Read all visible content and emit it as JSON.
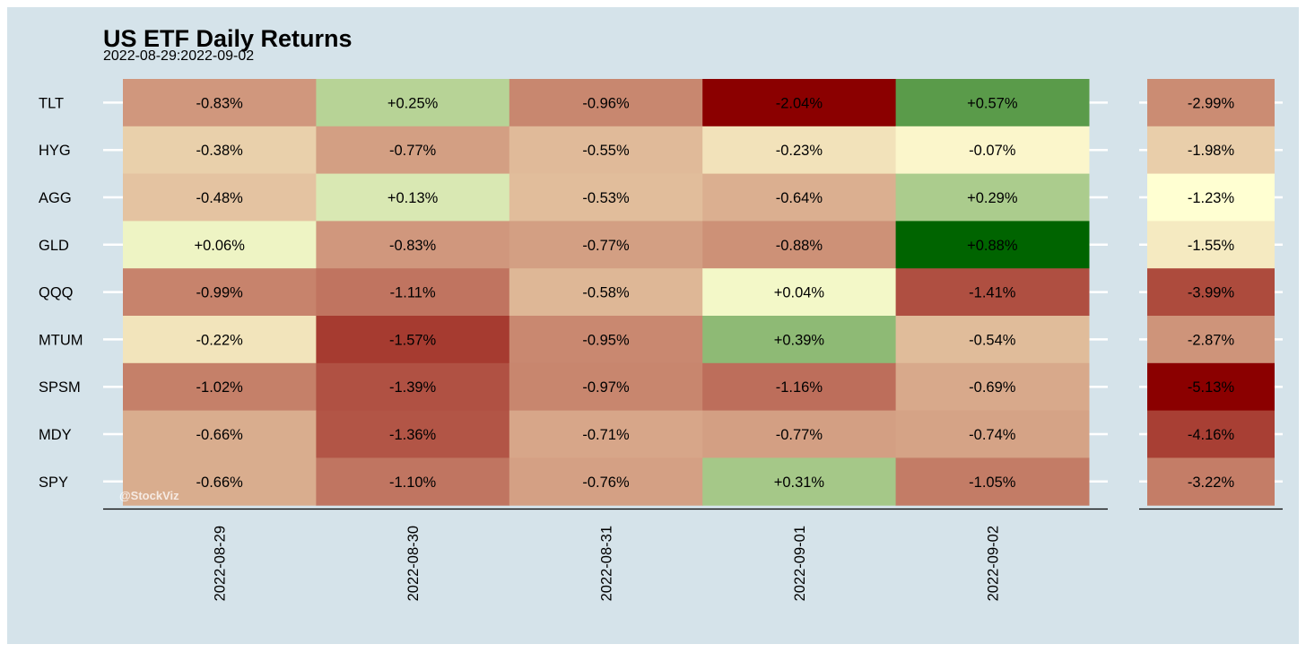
{
  "chart_data": {
    "type": "heatmap",
    "title": "US ETF Daily Returns",
    "subtitle": "2022-08-29:2022-09-02",
    "watermark": "@StockViz",
    "dates": [
      "2022-08-29",
      "2022-08-30",
      "2022-08-31",
      "2022-09-01",
      "2022-09-02"
    ],
    "tickers": [
      "TLT",
      "HYG",
      "AGG",
      "GLD",
      "QQQ",
      "MTUM",
      "SPSM",
      "MDY",
      "SPY"
    ],
    "values": [
      [
        -0.83,
        0.25,
        -0.96,
        -2.04,
        0.57
      ],
      [
        -0.38,
        -0.77,
        -0.55,
        -0.23,
        -0.07
      ],
      [
        -0.48,
        0.13,
        -0.53,
        -0.64,
        0.29
      ],
      [
        0.06,
        -0.83,
        -0.77,
        -0.88,
        0.88
      ],
      [
        -0.99,
        -1.11,
        -0.58,
        0.04,
        -1.41
      ],
      [
        -0.22,
        -1.57,
        -0.95,
        0.39,
        -0.54
      ],
      [
        -1.02,
        -1.39,
        -0.97,
        -1.16,
        -0.69
      ],
      [
        -0.66,
        -1.36,
        -0.71,
        -0.77,
        -0.74
      ],
      [
        -0.66,
        -1.1,
        -0.76,
        0.31,
        -1.05
      ]
    ],
    "labels": [
      [
        "-0.83%",
        "+0.25%",
        "-0.96%",
        "-2.04%",
        "+0.57%"
      ],
      [
        "-0.38%",
        "-0.77%",
        "-0.55%",
        "-0.23%",
        "-0.07%"
      ],
      [
        "-0.48%",
        "+0.13%",
        "-0.53%",
        "-0.64%",
        "+0.29%"
      ],
      [
        "+0.06%",
        "-0.83%",
        "-0.77%",
        "-0.88%",
        "+0.88%"
      ],
      [
        "-0.99%",
        "-1.11%",
        "-0.58%",
        "+0.04%",
        "-1.41%"
      ],
      [
        "-0.22%",
        "-1.57%",
        "-0.95%",
        "+0.39%",
        "-0.54%"
      ],
      [
        "-1.02%",
        "-1.39%",
        "-0.97%",
        "-1.16%",
        "-0.69%"
      ],
      [
        "-0.66%",
        "-1.36%",
        "-0.71%",
        "-0.77%",
        "-0.74%"
      ],
      [
        "-0.66%",
        "-1.10%",
        "-0.76%",
        "+0.31%",
        "-1.05%"
      ]
    ],
    "totals": [
      -2.99,
      -1.98,
      -1.23,
      -1.55,
      -3.99,
      -2.87,
      -5.13,
      -4.16,
      -3.22
    ],
    "total_labels": [
      "-2.99%",
      "-1.98%",
      "-1.23%",
      "-1.55%",
      "-3.99%",
      "-2.87%",
      "-5.13%",
      "-4.16%",
      "-3.22%"
    ],
    "colors": {
      "background": "#d5e3ea",
      "low": "#8b0000",
      "mid": "#ffffd2",
      "high": "#006400"
    }
  }
}
